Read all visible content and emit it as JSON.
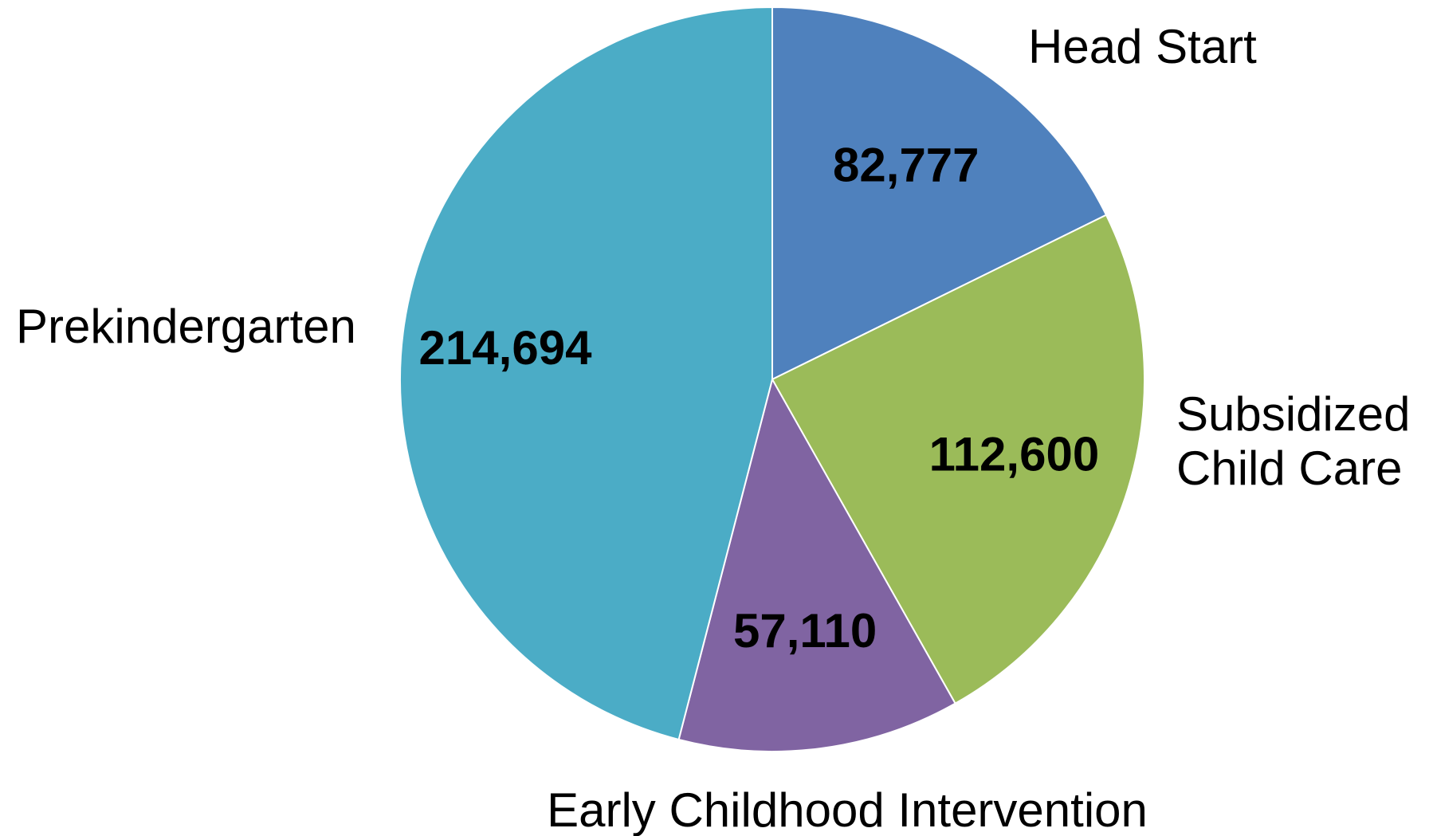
{
  "chart_data": {
    "type": "pie",
    "title": "",
    "start_angle": "12 o'clock",
    "direction": "clockwise",
    "legend": "none",
    "slices": [
      {
        "label": "Head Start",
        "label_lines": [
          "Head Start"
        ],
        "value": 82777,
        "value_text": "82,777",
        "color": "#4F81BD"
      },
      {
        "label": "Subsidized Child Care",
        "label_lines": [
          "Subsidized",
          "Child Care"
        ],
        "value": 112600,
        "value_text": "112,600",
        "color": "#9BBB59"
      },
      {
        "label": "Early Childhood Intervention",
        "label_lines": [
          "Early Childhood Intervention"
        ],
        "value": 57110,
        "value_text": "57,110",
        "color": "#8064A2"
      },
      {
        "label": "Prekindergarten",
        "label_lines": [
          "Prekindergarten"
        ],
        "value": 214694,
        "value_text": "214,694",
        "color": "#4BACC6"
      }
    ]
  }
}
